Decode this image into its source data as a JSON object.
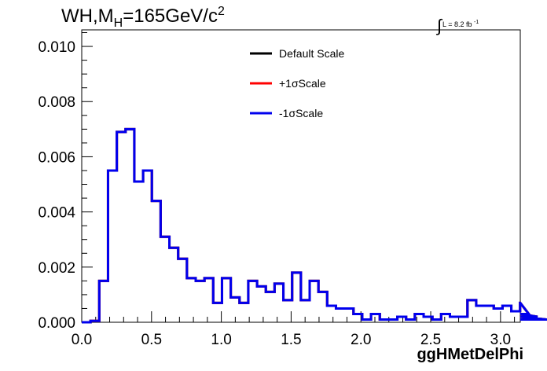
{
  "title": {
    "main": "WH,M",
    "subscript": "H",
    "rest": "=165GeV/c",
    "superscript": "2"
  },
  "luminosity": {
    "symbol": "∫",
    "text": "L = 8.2 fb",
    "superscript": "-1"
  },
  "chart_data": {
    "type": "line",
    "xlabel": "ggHMetDelPhi",
    "ylabel": "",
    "xlim": [
      0.0,
      3.1416
    ],
    "ylim": [
      0.0,
      0.0106
    ],
    "x_ticks": [
      "0.0",
      "0.5",
      "1.0",
      "1.5",
      "2.0",
      "2.5",
      "3.0"
    ],
    "x_tick_values": [
      0.0,
      0.5,
      1.0,
      1.5,
      2.0,
      2.5,
      3.0
    ],
    "y_ticks": [
      "0.000",
      "0.002",
      "0.004",
      "0.006",
      "0.008",
      "0.010"
    ],
    "y_tick_values": [
      0.0,
      0.002,
      0.004,
      0.006,
      0.008,
      0.01
    ],
    "bin_width": 0.0628,
    "legend_position": "top-center",
    "series": [
      {
        "name": "Default Scale",
        "color": "#000000",
        "values": [
          0.0,
          5e-05,
          0.0015,
          0.0055,
          0.0069,
          0.007,
          0.0051,
          0.0055,
          0.0044,
          0.0031,
          0.0027,
          0.0023,
          0.0016,
          0.0015,
          0.0016,
          0.0007,
          0.0016,
          0.0009,
          0.0007,
          0.0015,
          0.0013,
          0.0011,
          0.0014,
          0.0008,
          0.0018,
          0.0008,
          0.0015,
          0.0011,
          0.0006,
          0.0005,
          0.0005,
          0.0003,
          0.0001,
          0.0003,
          0.0001,
          0.0001,
          0.0002,
          0.0001,
          0.0003,
          0.0002,
          0.0001,
          0.0003,
          0.0002,
          0.0002,
          0.0008,
          0.0006,
          0.0006,
          0.0005,
          0.0006,
          0.0004,
          0.0007,
          0.0003,
          0.0002,
          0.0001,
          0.0001
        ]
      },
      {
        "name": "+1σScale",
        "color": "#ff0000",
        "values": [
          0.0,
          5e-05,
          0.0015,
          0.0055,
          0.0069,
          0.007,
          0.0051,
          0.0055,
          0.0044,
          0.0031,
          0.0027,
          0.0023,
          0.0016,
          0.0015,
          0.0016,
          0.0007,
          0.0016,
          0.0009,
          0.0007,
          0.0015,
          0.0013,
          0.0011,
          0.0014,
          0.0008,
          0.0018,
          0.0008,
          0.0015,
          0.0011,
          0.0006,
          0.0005,
          0.0005,
          0.0003,
          0.0001,
          0.0003,
          0.0001,
          0.0001,
          0.0002,
          0.0001,
          0.0003,
          0.0002,
          0.0001,
          0.0003,
          0.0002,
          0.0002,
          0.0008,
          0.0006,
          0.0006,
          0.0005,
          0.0006,
          0.0004,
          0.0007,
          0.0003,
          0.0002,
          0.0001,
          0.0001
        ]
      },
      {
        "name": "-1σScale",
        "color": "#0000ee",
        "values": [
          0.0,
          5e-05,
          0.0015,
          0.0055,
          0.0069,
          0.007,
          0.0051,
          0.0055,
          0.0044,
          0.0031,
          0.0027,
          0.0023,
          0.0016,
          0.0015,
          0.0016,
          0.0007,
          0.0016,
          0.0009,
          0.0007,
          0.0015,
          0.0013,
          0.0011,
          0.0014,
          0.0008,
          0.0018,
          0.0008,
          0.0015,
          0.0011,
          0.0006,
          0.0005,
          0.0005,
          0.0003,
          0.0001,
          0.0003,
          0.0001,
          0.0001,
          0.0002,
          0.0001,
          0.0003,
          0.0002,
          0.0001,
          0.0003,
          0.0002,
          0.0002,
          0.0008,
          0.0006,
          0.0006,
          0.0005,
          0.0006,
          0.0004,
          0.0007,
          0.0003,
          0.0002,
          0.0001,
          0.0001
        ]
      }
    ]
  }
}
